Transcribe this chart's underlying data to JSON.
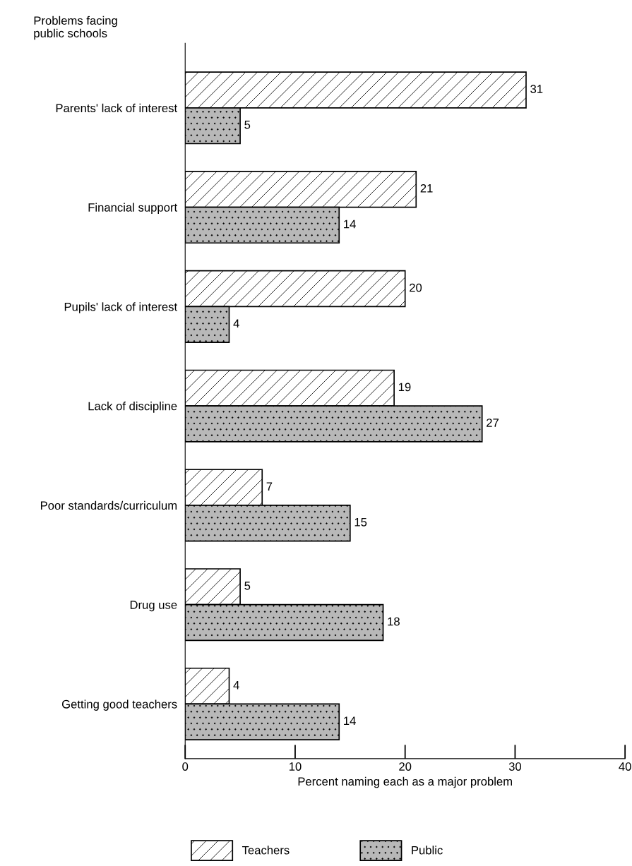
{
  "chart_data": {
    "type": "bar",
    "orientation": "horizontal",
    "ylabel": "Problems facing\npublic schools",
    "xlabel": "Percent naming each as a major problem",
    "categories": [
      "Parents' lack of interest",
      "Financial support",
      "Pupils' lack of interest",
      "Lack of discipline",
      "Poor standards/curriculum",
      "Drug use",
      "Getting good teachers"
    ],
    "series": [
      {
        "name": "Teachers",
        "color": "#ffffff",
        "values": [
          31,
          21,
          20,
          19,
          7,
          5,
          4
        ]
      },
      {
        "name": "Public",
        "color": "#b8b8b8",
        "values": [
          5,
          14,
          4,
          27,
          15,
          18,
          14
        ]
      }
    ],
    "xlim": [
      0,
      40
    ],
    "xticks": [
      0,
      10,
      20,
      30,
      40
    ],
    "data_labels": true,
    "grid": false,
    "legend": "bottom"
  }
}
